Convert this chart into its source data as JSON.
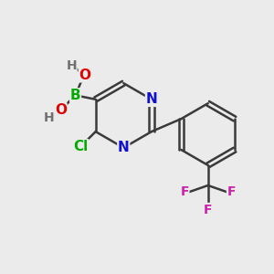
{
  "bg_color": "#ebebeb",
  "bond_color": "#3a3a3a",
  "bond_width": 1.8,
  "atom_colors": {
    "B": "#00aa00",
    "O": "#dd0000",
    "N": "#1111cc",
    "Cl": "#00aa00",
    "F": "#cc22aa",
    "C": "#3a3a3a",
    "H": "#707070"
  },
  "font_size": 11,
  "font_size_small": 10
}
